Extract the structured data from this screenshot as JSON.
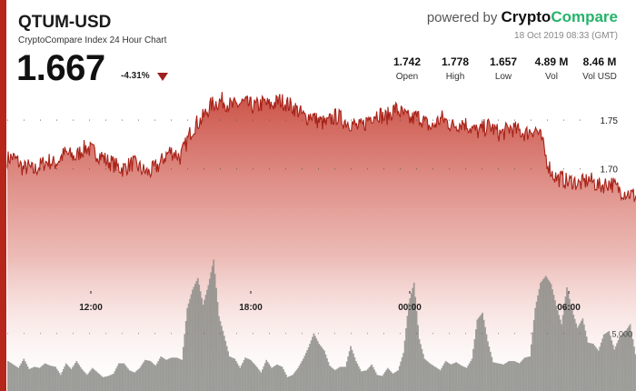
{
  "header": {
    "title": "QTUM-USD",
    "subtitle": "CryptoCompare Index 24 Hour Chart",
    "price": "1.667",
    "change": "-4.31%",
    "powered_prefix": "powered by ",
    "brand_part1": "Crypto",
    "brand_part2": "Compare",
    "timestamp": "18 Oct 2019 08:33 (GMT)"
  },
  "stats": [
    {
      "value": "1.742",
      "label": "Open"
    },
    {
      "value": "1.778",
      "label": "High"
    },
    {
      "value": "1.657",
      "label": "Low"
    },
    {
      "value": "4.89 M",
      "label": "Vol"
    },
    {
      "value": "8.46 M",
      "label": "Vol USD"
    }
  ],
  "colors": {
    "accent": "#b6261a",
    "price_line": "#a82218",
    "volume": "#8c8c88",
    "brand_green": "#25b36b"
  },
  "chart_data": {
    "type": "line",
    "x_ticks": [
      "12:00",
      "18:00",
      "00:00",
      "06:00"
    ],
    "price": {
      "y_ticks": [
        1.7,
        1.75
      ],
      "ylim": [
        1.64,
        1.78
      ],
      "values": [
        1.71,
        1.712,
        1.708,
        1.7,
        1.702,
        1.698,
        1.702,
        1.706,
        1.708,
        1.705,
        1.71,
        1.716,
        1.714,
        1.712,
        1.718,
        1.722,
        1.719,
        1.716,
        1.713,
        1.708,
        1.706,
        1.702,
        1.7,
        1.703,
        1.706,
        1.702,
        1.698,
        1.696,
        1.7,
        1.704,
        1.712,
        1.718,
        1.716,
        1.712,
        1.724,
        1.738,
        1.746,
        1.75,
        1.758,
        1.766,
        1.768,
        1.77,
        1.767,
        1.764,
        1.766,
        1.768,
        1.766,
        1.764,
        1.765,
        1.768,
        1.765,
        1.767,
        1.77,
        1.768,
        1.765,
        1.762,
        1.757,
        1.752,
        1.756,
        1.75,
        1.748,
        1.746,
        1.752,
        1.754,
        1.75,
        1.748,
        1.746,
        1.742,
        1.745,
        1.752,
        1.756,
        1.757,
        1.752,
        1.756,
        1.762,
        1.758,
        1.754,
        1.75,
        1.754,
        1.752,
        1.746,
        1.742,
        1.748,
        1.752,
        1.748,
        1.744,
        1.746,
        1.748,
        1.744,
        1.74,
        1.738,
        1.742,
        1.744,
        1.74,
        1.736,
        1.738,
        1.742,
        1.74,
        1.738,
        1.736,
        1.74,
        1.74,
        1.73,
        1.708,
        1.695,
        1.69,
        1.69,
        1.686,
        1.688,
        1.684,
        1.686,
        1.689,
        1.686,
        1.682,
        1.684,
        1.686,
        1.682,
        1.678,
        1.676,
        1.674,
        1.672
      ],
      "noise": 0.009
    },
    "volume": {
      "y_ticks": [
        5000
      ],
      "y_tick_labels": [
        "5,000"
      ],
      "ylim": [
        0,
        15000
      ],
      "values": [
        2600,
        2300,
        2000,
        2800,
        1900,
        2100,
        2000,
        2400,
        2200,
        2100,
        1400,
        2400,
        1900,
        2600,
        1900,
        1400,
        2000,
        1600,
        1200,
        1300,
        1500,
        2400,
        2400,
        1800,
        1600,
        2000,
        2700,
        2600,
        2200,
        3000,
        2700,
        2900,
        2900,
        2700,
        7200,
        8800,
        9800,
        7500,
        9200,
        11400,
        6500,
        4800,
        3000,
        2800,
        2000,
        2900,
        2700,
        2200,
        1600,
        2700,
        2000,
        2300,
        2100,
        1200,
        1400,
        2000,
        2800,
        3800,
        5000,
        4100,
        3500,
        2200,
        1800,
        2100,
        2100,
        3900,
        2600,
        1700,
        1800,
        2300,
        1400,
        1300,
        2000,
        1500,
        1800,
        3300,
        7600,
        9400,
        4500,
        2800,
        2400,
        2100,
        1800,
        2600,
        2300,
        2500,
        2200,
        2000,
        2800,
        6200,
        6800,
        4300,
        2500,
        2400,
        2300,
        2600,
        2600,
        2400,
        2900,
        3000,
        7200,
        9400,
        10000,
        9300,
        7400,
        5800,
        9000,
        7000,
        5500,
        6300,
        4200,
        4100,
        3500,
        4900,
        5200,
        3600,
        4700,
        5100,
        5800,
        3200
      ],
      "noise": 0.35
    }
  }
}
